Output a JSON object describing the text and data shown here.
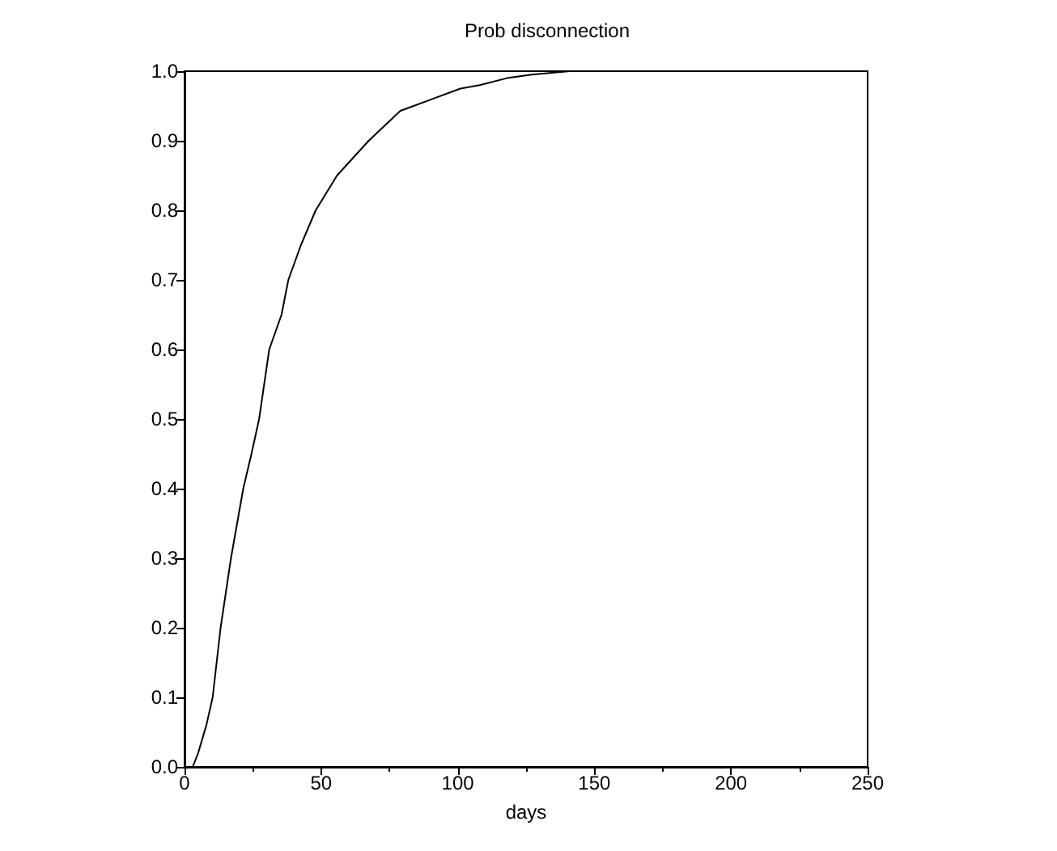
{
  "chart_data": {
    "type": "line",
    "title": "Prob disconnection",
    "xlabel": "days",
    "series": [
      {
        "color": "#000000",
        "x": [
          3,
          5,
          8,
          10.3,
          13.2,
          17,
          21.5,
          24.5,
          27.3,
          31,
          35.5,
          38,
          42.6,
          48,
          55.8,
          67.4,
          79,
          90.7,
          101,
          108,
          118,
          127,
          141,
          150,
          159
        ],
        "values": [
          0,
          0.02,
          0.06,
          0.1,
          0.2,
          0.3,
          0.4,
          0.45,
          0.5,
          0.6,
          0.65,
          0.7,
          0.75,
          0.8,
          0.85,
          0.9,
          0.943,
          0.96,
          0.975,
          0.98,
          0.99,
          0.995,
          1,
          1,
          1
        ]
      }
    ],
    "xlim": [
      0,
      250
    ],
    "xticks": [
      0,
      50,
      100,
      150,
      200,
      250
    ],
    "ylim": [
      0,
      1
    ],
    "yticks": [
      {
        "value": 0,
        "label": "0.0"
      },
      {
        "value": 0.1,
        "label": "0.1"
      },
      {
        "value": 0.2,
        "label": "0.2"
      },
      {
        "value": 0.3,
        "label": "0.3"
      },
      {
        "value": 0.4,
        "label": "0.4"
      },
      {
        "value": 0.5,
        "label": "0.5"
      },
      {
        "value": 0.6,
        "label": "0.6"
      },
      {
        "value": 0.7,
        "label": "0.7"
      },
      {
        "value": 0.8,
        "label": "0.8"
      },
      {
        "value": 0.9,
        "label": "0.9"
      },
      {
        "value": 1,
        "label": "1.0"
      }
    ],
    "grid": false,
    "marker": "none",
    "line_style": "solid"
  }
}
